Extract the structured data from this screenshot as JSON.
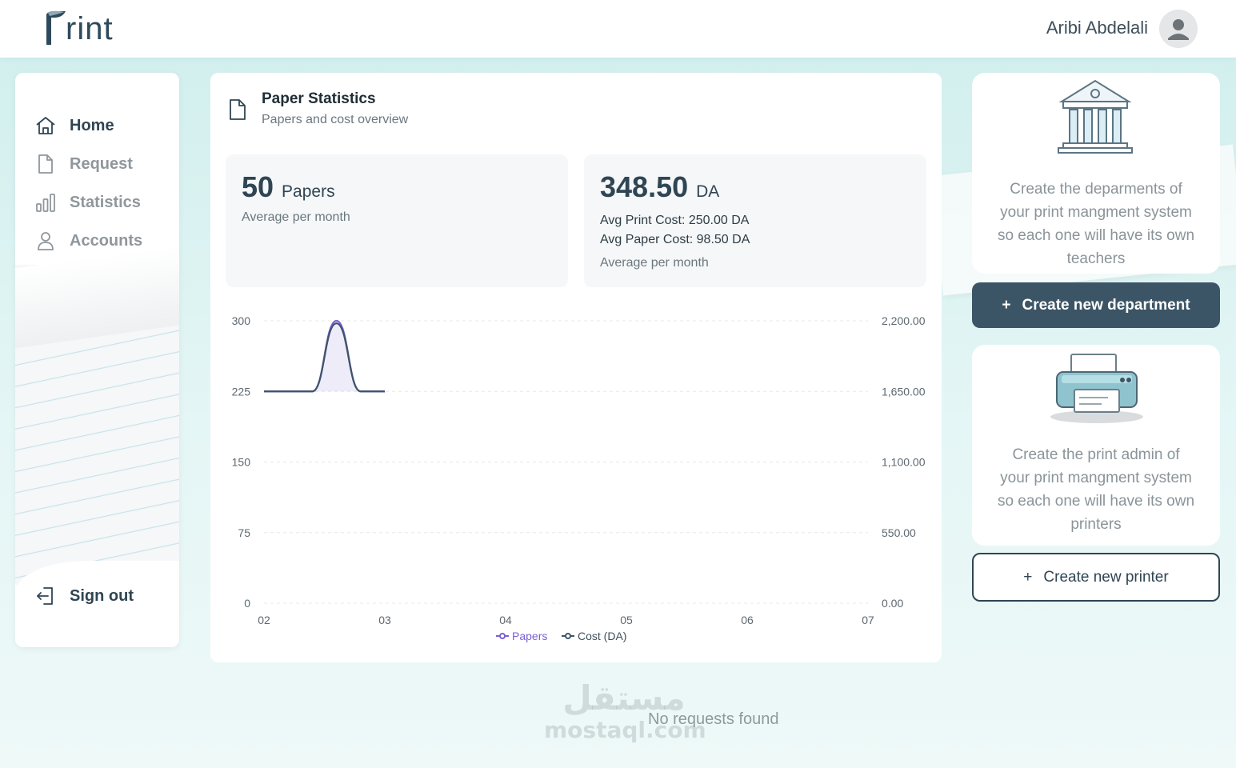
{
  "header": {
    "logo_text": "rint",
    "user_name": "Aribi Abdelali"
  },
  "sidebar": {
    "items": [
      {
        "label": "Home",
        "icon": "home-icon",
        "active": true
      },
      {
        "label": "Request",
        "icon": "document-icon",
        "active": false
      },
      {
        "label": "Statistics",
        "icon": "bar-chart-icon",
        "active": false
      },
      {
        "label": "Accounts",
        "icon": "user-icon",
        "active": false
      }
    ],
    "signout_label": "Sign out"
  },
  "main": {
    "title": "Paper Statistics",
    "subtitle": "Papers and cost overview",
    "papers_stat": {
      "value": "50",
      "unit": "Papers",
      "caption": "Average per month"
    },
    "cost_stat": {
      "value": "348.50",
      "unit": "DA",
      "print_cost": "Avg Print Cost: 250.00 DA",
      "paper_cost": "Avg Paper Cost: 98.50 DA",
      "caption": "Average per month"
    }
  },
  "chart_data": {
    "type": "line",
    "x_ticks": [
      "02",
      "03",
      "04",
      "05",
      "06",
      "07"
    ],
    "left_axis": {
      "ticks": [
        "0",
        "75",
        "150",
        "225",
        "300"
      ],
      "ylim": [
        0,
        300
      ]
    },
    "right_axis": {
      "ticks": [
        "0.00",
        "550.00",
        "1,100.00",
        "1,650.00",
        "2,200.00"
      ],
      "ylim": [
        0,
        2200
      ]
    },
    "series": [
      {
        "name": "Papers",
        "color": "#7b5fd6",
        "x": [
          2.0,
          2.4,
          2.6,
          2.8,
          3.0
        ],
        "values": [
          225,
          225,
          300,
          225,
          225
        ]
      },
      {
        "name": "Cost (DA)",
        "color": "#3c5566",
        "x": [
          2.0,
          2.4,
          2.6,
          2.8,
          3.0
        ],
        "values": [
          1650,
          1650,
          2180,
          1650,
          1650
        ]
      }
    ],
    "grid": true,
    "legend": "bottom-center"
  },
  "right_panel": {
    "department_text": "Create the deparments of your print mangment system so each one will have its own teachers",
    "department_button": "Create new department",
    "printer_text": "Create the print admin of your print mangment system so each one will have its own printers",
    "printer_button": "Create new printer"
  },
  "footer": {
    "empty_message": "No requests found",
    "watermark_ar": "مستقل",
    "watermark_latin": "mostaql.com"
  },
  "colors": {
    "primary": "#3c5566",
    "papers": "#7b5fd6",
    "background": "#d6f1f0"
  }
}
